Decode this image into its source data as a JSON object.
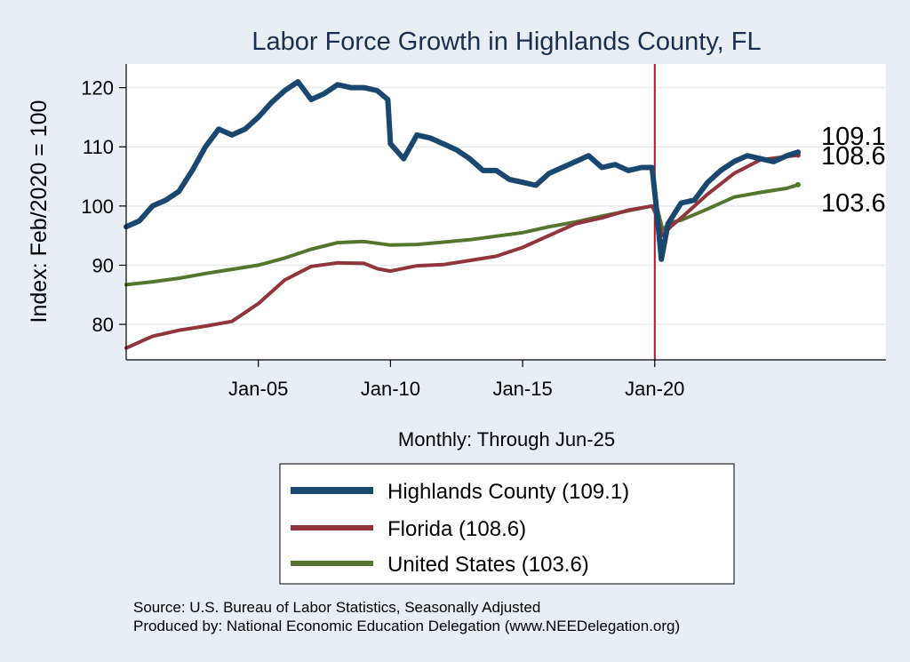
{
  "chart_data": {
    "type": "line",
    "title": "Labor Force Growth in Highlands  County, FL",
    "ylabel": "Index: Feb/2020 = 100",
    "xlabel": "Monthly: Through Jun-25",
    "xlim": [
      2000.0,
      2028.75
    ],
    "ylim": [
      74,
      124
    ],
    "yticks": [
      80,
      90,
      100,
      110,
      120
    ],
    "xticks": [
      {
        "value": 2005.0,
        "label": "Jan-05"
      },
      {
        "value": 2010.0,
        "label": "Jan-10"
      },
      {
        "value": 2015.0,
        "label": "Jan-15"
      },
      {
        "value": 2020.0,
        "label": "Jan-20"
      }
    ],
    "reference_line": {
      "x": 2020.0,
      "color": "#b5162f"
    },
    "grid": true,
    "legend_position": "bottom",
    "end_labels": [
      "109.1",
      "108.6",
      "103.6"
    ],
    "series": [
      {
        "name": "Highlands  County (109.1)",
        "color": "#1a476f",
        "x": [
          2000.0,
          2000.5,
          2001.0,
          2001.5,
          2002.0,
          2002.5,
          2003.0,
          2003.5,
          2004.0,
          2004.5,
          2005.0,
          2005.5,
          2006.0,
          2006.5,
          2007.0,
          2007.5,
          2008.0,
          2008.5,
          2009.0,
          2009.5,
          2009.9,
          2010.0,
          2010.5,
          2011.0,
          2011.5,
          2012.0,
          2012.5,
          2013.0,
          2013.5,
          2014.0,
          2014.5,
          2015.0,
          2015.5,
          2016.0,
          2016.5,
          2017.0,
          2017.5,
          2018.0,
          2018.5,
          2019.0,
          2019.5,
          2019.9,
          2020.1,
          2020.25,
          2020.5,
          2021.0,
          2021.5,
          2022.0,
          2022.5,
          2023.0,
          2023.5,
          2024.0,
          2024.5,
          2025.0,
          2025.42
        ],
        "values": [
          96.5,
          97.5,
          100.0,
          101.0,
          102.5,
          106.0,
          110.0,
          113.0,
          112.0,
          113.0,
          115.0,
          117.5,
          119.5,
          121.0,
          118.0,
          119.0,
          120.5,
          120.0,
          120.0,
          119.5,
          118.0,
          110.5,
          108.0,
          112.0,
          111.5,
          110.5,
          109.5,
          108.0,
          106.0,
          106.0,
          104.5,
          104.0,
          103.5,
          105.5,
          106.5,
          107.5,
          108.5,
          106.5,
          107.0,
          106.0,
          106.5,
          106.5,
          98.0,
          91.0,
          97.0,
          100.5,
          101.0,
          104.0,
          106.0,
          107.5,
          108.5,
          108.0,
          107.5,
          108.5,
          109.1
        ]
      },
      {
        "name": "Florida (108.6)",
        "color": "#90353b",
        "x": [
          2000.0,
          2001.0,
          2002.0,
          2003.0,
          2004.0,
          2005.0,
          2006.0,
          2007.0,
          2008.0,
          2009.0,
          2009.5,
          2010.0,
          2011.0,
          2012.0,
          2013.0,
          2014.0,
          2015.0,
          2016.0,
          2017.0,
          2018.0,
          2019.0,
          2019.9,
          2020.1,
          2020.3,
          2020.6,
          2021.0,
          2022.0,
          2023.0,
          2024.0,
          2025.42
        ],
        "values": [
          76.0,
          78.0,
          79.0,
          79.7,
          80.5,
          83.5,
          87.5,
          89.8,
          90.4,
          90.3,
          89.4,
          89.0,
          89.9,
          90.1,
          90.8,
          91.5,
          93.0,
          95.0,
          97.0,
          98.0,
          99.3,
          100.0,
          98.0,
          95.0,
          96.5,
          98.0,
          102.0,
          105.5,
          107.8,
          108.6
        ]
      },
      {
        "name": "United States (103.6)",
        "color": "#55752f",
        "x": [
          2000.0,
          2001.0,
          2002.0,
          2003.0,
          2004.0,
          2005.0,
          2006.0,
          2007.0,
          2008.0,
          2009.0,
          2010.0,
          2011.0,
          2012.0,
          2013.0,
          2014.0,
          2015.0,
          2016.0,
          2017.0,
          2018.0,
          2019.0,
          2019.9,
          2020.1,
          2020.3,
          2020.6,
          2021.0,
          2022.0,
          2023.0,
          2024.0,
          2025.0,
          2025.42
        ],
        "values": [
          86.7,
          87.2,
          87.8,
          88.6,
          89.3,
          90.0,
          91.2,
          92.7,
          93.8,
          94.0,
          93.4,
          93.5,
          93.9,
          94.3,
          94.9,
          95.5,
          96.5,
          97.3,
          98.3,
          99.2,
          100.0,
          99.5,
          96.0,
          97.2,
          97.6,
          99.5,
          101.5,
          102.3,
          103.0,
          103.6
        ]
      }
    ]
  },
  "source_lines": [
    "Source: U.S. Bureau of Labor Statistics, Seasonally Adjusted",
    "Produced by: National Economic Education Delegation (www.NEEDelegation.org)"
  ]
}
